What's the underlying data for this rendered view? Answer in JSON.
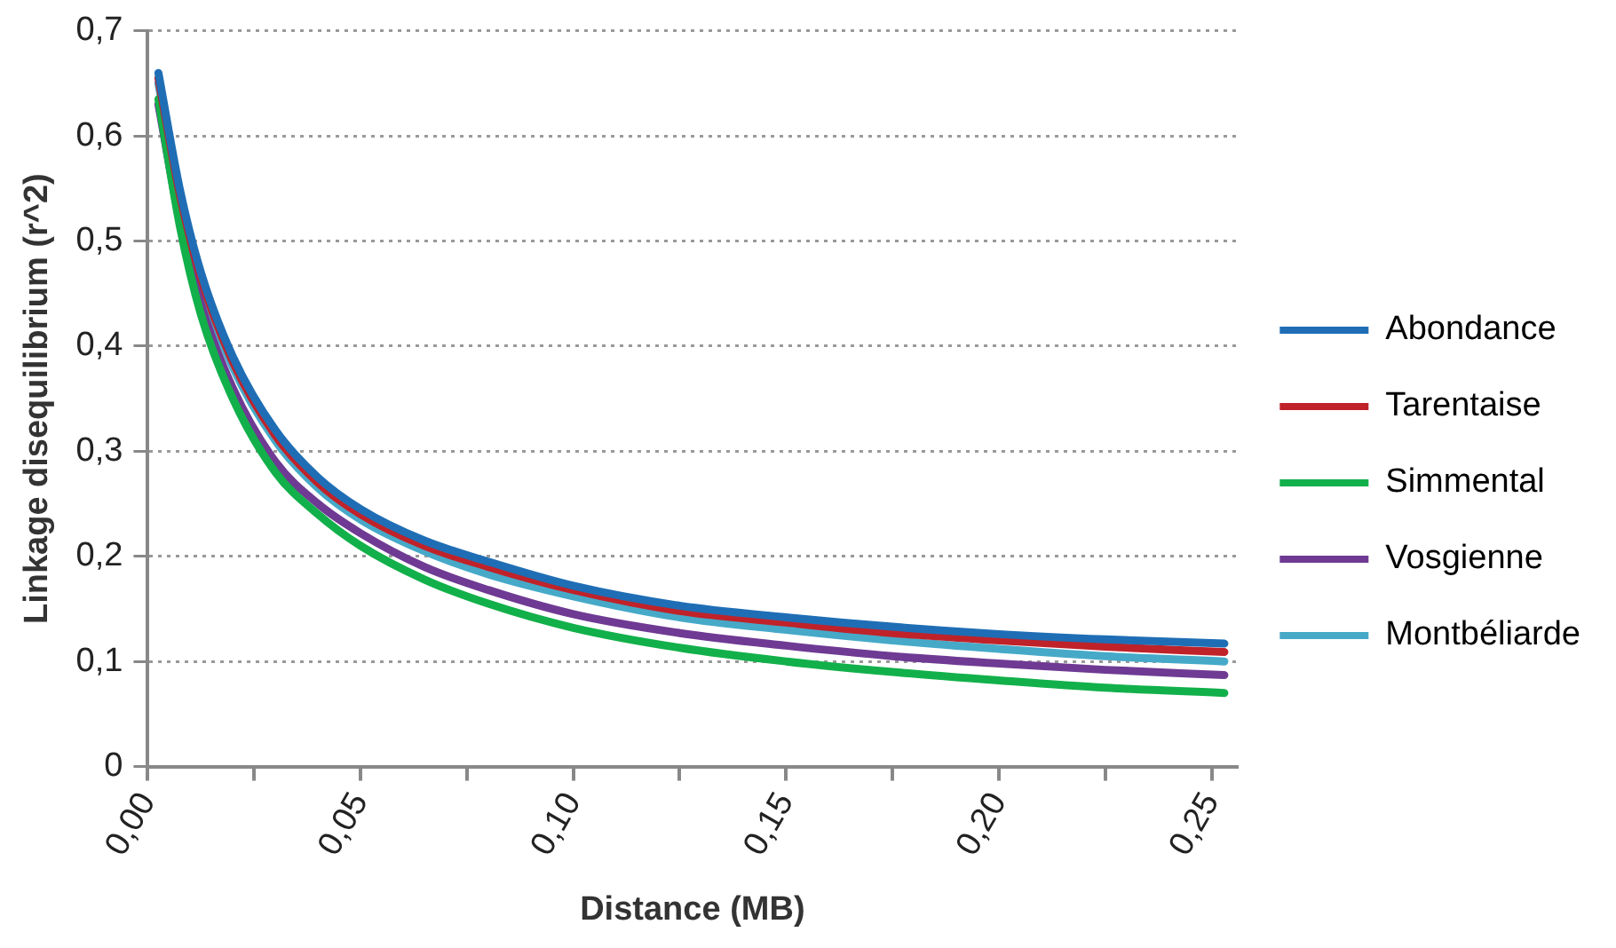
{
  "chart_data": {
    "type": "line",
    "xlabel": "Distance (MB)",
    "ylabel": "Linkage disequilibrium (r^2)",
    "x": [
      0.0025,
      0.0075,
      0.0125,
      0.02,
      0.03,
      0.04,
      0.05,
      0.065,
      0.08,
      0.1,
      0.125,
      0.15,
      0.175,
      0.2,
      0.225,
      0.253
    ],
    "series": [
      {
        "name": "Abondance",
        "color": "#1f6eb5",
        "values": [
          0.66,
          0.55,
          0.47,
          0.39,
          0.32,
          0.275,
          0.245,
          0.215,
          0.195,
          0.172,
          0.153,
          0.142,
          0.133,
          0.126,
          0.121,
          0.117
        ]
      },
      {
        "name": "Tarentaise",
        "color": "#c0222a",
        "values": [
          0.655,
          0.545,
          0.465,
          0.385,
          0.315,
          0.27,
          0.24,
          0.21,
          0.19,
          0.168,
          0.148,
          0.137,
          0.127,
          0.12,
          0.114,
          0.109
        ]
      },
      {
        "name": "Simmental",
        "color": "#12b04a",
        "values": [
          0.635,
          0.515,
          0.43,
          0.35,
          0.28,
          0.24,
          0.21,
          0.178,
          0.155,
          0.132,
          0.113,
          0.1,
          0.09,
          0.082,
          0.075,
          0.07
        ]
      },
      {
        "name": "Vosgienne",
        "color": "#6f3a93",
        "values": [
          0.63,
          0.52,
          0.44,
          0.36,
          0.29,
          0.25,
          0.222,
          0.19,
          0.168,
          0.145,
          0.127,
          0.115,
          0.105,
          0.098,
          0.092,
          0.087
        ]
      },
      {
        "name": "Montbéliarde",
        "color": "#46a9c8",
        "values": [
          0.65,
          0.54,
          0.46,
          0.38,
          0.31,
          0.265,
          0.235,
          0.205,
          0.183,
          0.162,
          0.142,
          0.13,
          0.12,
          0.112,
          0.105,
          0.1
        ]
      }
    ],
    "xlim": [
      0,
      0.256
    ],
    "xticks": [
      {
        "value": 0,
        "label": "0,00"
      },
      {
        "value": 0.025,
        "label": null
      },
      {
        "value": 0.05,
        "label": "0,05"
      },
      {
        "value": 0.075,
        "label": null
      },
      {
        "value": 0.1,
        "label": "0,10"
      },
      {
        "value": 0.125,
        "label": null
      },
      {
        "value": 0.15,
        "label": "0,15"
      },
      {
        "value": 0.175,
        "label": null
      },
      {
        "value": 0.2,
        "label": "0,20"
      },
      {
        "value": 0.225,
        "label": null
      },
      {
        "value": 0.25,
        "label": "0,25"
      }
    ],
    "ylim": [
      0,
      0.7
    ],
    "yticks": [
      0,
      {
        "value": 0.1,
        "label": "0,1"
      },
      {
        "value": 0.2,
        "label": "0,2"
      },
      {
        "value": 0.3,
        "label": "0,3"
      },
      {
        "value": 0.4,
        "label": "0,4"
      },
      {
        "value": 0.5,
        "label": "0,5"
      },
      {
        "value": 0.6,
        "label": "0,6"
      },
      {
        "value": 0.7,
        "label": "0,7"
      }
    ],
    "grid": "y",
    "legend": "right",
    "marker": "none",
    "line_style": "solid"
  }
}
